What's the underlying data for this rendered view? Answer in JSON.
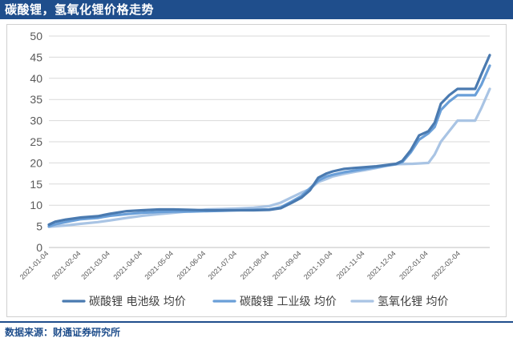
{
  "header": {
    "title": "碳酸锂，氢氧化锂价格走势"
  },
  "footer": {
    "source": "数据来源：财通证券研究所"
  },
  "colors": {
    "title_bar": "#1f4e8c",
    "grid": "#d9d9d9",
    "axis_text": "#595959"
  },
  "chart_data": {
    "type": "line",
    "title": "",
    "xlabel": "",
    "ylabel": "",
    "ylim": [
      0,
      50
    ],
    "yticks": [
      0,
      5,
      10,
      15,
      20,
      25,
      30,
      35,
      40,
      45,
      50
    ],
    "xlim": [
      "2021-01-04",
      "2022-03-04"
    ],
    "xtick_labels": [
      "2021-01-04",
      "2021-02-04",
      "2021-03-04",
      "2021-04-04",
      "2021-05-04",
      "2021-06-04",
      "2021-07-04",
      "2021-08-04",
      "2021-09-04",
      "2021-10-04",
      "2021-11-04",
      "2021-12-04",
      "2022-01-04",
      "2022-02-04"
    ],
    "grid": "horizontal",
    "legend_position": "bottom",
    "series": [
      {
        "name": "碳酸锂 电池级 均价",
        "color": "#4a7ab0",
        "points": [
          [
            "2021-01-04",
            5.4
          ],
          [
            "2021-01-10",
            6.1
          ],
          [
            "2021-01-20",
            6.6
          ],
          [
            "2021-02-04",
            7.1
          ],
          [
            "2021-02-20",
            7.4
          ],
          [
            "2021-03-04",
            8.0
          ],
          [
            "2021-03-20",
            8.6
          ],
          [
            "2021-04-04",
            8.8
          ],
          [
            "2021-04-20",
            9.0
          ],
          [
            "2021-05-04",
            9.0
          ],
          [
            "2021-05-20",
            8.9
          ],
          [
            "2021-06-04",
            8.8
          ],
          [
            "2021-06-20",
            8.8
          ],
          [
            "2021-07-04",
            8.8
          ],
          [
            "2021-07-20",
            8.8
          ],
          [
            "2021-08-04",
            8.9
          ],
          [
            "2021-08-15",
            9.3
          ],
          [
            "2021-08-25",
            10.5
          ],
          [
            "2021-09-04",
            11.8
          ],
          [
            "2021-09-12",
            13.5
          ],
          [
            "2021-09-20",
            16.5
          ],
          [
            "2021-09-28",
            17.5
          ],
          [
            "2021-10-04",
            18.0
          ],
          [
            "2021-10-15",
            18.6
          ],
          [
            "2021-10-25",
            18.8
          ],
          [
            "2021-11-04",
            19.0
          ],
          [
            "2021-11-15",
            19.2
          ],
          [
            "2021-11-25",
            19.5
          ],
          [
            "2021-12-04",
            19.8
          ],
          [
            "2021-12-10",
            20.5
          ],
          [
            "2021-12-18",
            23.0
          ],
          [
            "2021-12-26",
            26.5
          ],
          [
            "2022-01-04",
            27.5
          ],
          [
            "2022-01-10",
            29.5
          ],
          [
            "2022-01-16",
            34.0
          ],
          [
            "2022-01-24",
            36.0
          ],
          [
            "2022-02-01",
            37.5
          ],
          [
            "2022-02-18",
            37.5
          ],
          [
            "2022-02-24",
            41.0
          ],
          [
            "2022-03-04",
            45.5
          ]
        ]
      },
      {
        "name": "碳酸锂 工业级 均价",
        "color": "#6a9fd8",
        "points": [
          [
            "2021-01-04",
            5.0
          ],
          [
            "2021-01-12",
            5.6
          ],
          [
            "2021-01-24",
            6.2
          ],
          [
            "2021-02-04",
            6.7
          ],
          [
            "2021-02-20",
            7.0
          ],
          [
            "2021-03-04",
            7.5
          ],
          [
            "2021-03-20",
            7.9
          ],
          [
            "2021-04-04",
            8.2
          ],
          [
            "2021-04-20",
            8.4
          ],
          [
            "2021-05-04",
            8.5
          ],
          [
            "2021-05-20",
            8.5
          ],
          [
            "2021-06-04",
            8.6
          ],
          [
            "2021-06-20",
            8.7
          ],
          [
            "2021-07-04",
            8.8
          ],
          [
            "2021-07-20",
            8.9
          ],
          [
            "2021-08-04",
            9.0
          ],
          [
            "2021-08-15",
            9.5
          ],
          [
            "2021-08-25",
            10.8
          ],
          [
            "2021-09-04",
            12.2
          ],
          [
            "2021-09-12",
            14.0
          ],
          [
            "2021-09-20",
            15.8
          ],
          [
            "2021-09-28",
            16.8
          ],
          [
            "2021-10-04",
            17.2
          ],
          [
            "2021-10-15",
            17.8
          ],
          [
            "2021-10-25",
            18.2
          ],
          [
            "2021-11-04",
            18.6
          ],
          [
            "2021-11-15",
            19.0
          ],
          [
            "2021-11-25",
            19.4
          ],
          [
            "2021-12-04",
            19.7
          ],
          [
            "2021-12-10",
            20.2
          ],
          [
            "2021-12-18",
            22.5
          ],
          [
            "2021-12-26",
            25.5
          ],
          [
            "2022-01-04",
            27.0
          ],
          [
            "2022-01-10",
            28.5
          ],
          [
            "2022-01-16",
            32.5
          ],
          [
            "2022-01-24",
            34.5
          ],
          [
            "2022-02-01",
            36.0
          ],
          [
            "2022-02-18",
            36.0
          ],
          [
            "2022-02-24",
            38.5
          ],
          [
            "2022-03-04",
            43.0
          ]
        ]
      },
      {
        "name": "氢氧化锂 均价",
        "color": "#a9c4e4",
        "points": [
          [
            "2021-01-04",
            4.9
          ],
          [
            "2021-01-20",
            5.2
          ],
          [
            "2021-02-04",
            5.6
          ],
          [
            "2021-02-20",
            6.0
          ],
          [
            "2021-03-04",
            6.4
          ],
          [
            "2021-03-20",
            7.0
          ],
          [
            "2021-04-04",
            7.5
          ],
          [
            "2021-04-20",
            7.9
          ],
          [
            "2021-05-04",
            8.2
          ],
          [
            "2021-05-20",
            8.6
          ],
          [
            "2021-06-04",
            9.0
          ],
          [
            "2021-06-20",
            9.1
          ],
          [
            "2021-07-04",
            9.2
          ],
          [
            "2021-07-20",
            9.4
          ],
          [
            "2021-08-04",
            9.8
          ],
          [
            "2021-08-15",
            10.6
          ],
          [
            "2021-08-25",
            11.8
          ],
          [
            "2021-09-04",
            13.0
          ],
          [
            "2021-09-12",
            13.8
          ],
          [
            "2021-09-20",
            15.5
          ],
          [
            "2021-09-28",
            16.2
          ],
          [
            "2021-10-04",
            16.8
          ],
          [
            "2021-10-15",
            17.4
          ],
          [
            "2021-10-25",
            17.9
          ],
          [
            "2021-11-04",
            18.3
          ],
          [
            "2021-11-15",
            18.8
          ],
          [
            "2021-11-25",
            19.3
          ],
          [
            "2021-12-04",
            19.7
          ],
          [
            "2021-12-20",
            19.8
          ],
          [
            "2022-01-04",
            20.0
          ],
          [
            "2022-01-10",
            22.0
          ],
          [
            "2022-01-16",
            25.0
          ],
          [
            "2022-01-24",
            27.5
          ],
          [
            "2022-02-01",
            30.0
          ],
          [
            "2022-02-18",
            30.0
          ],
          [
            "2022-02-24",
            33.0
          ],
          [
            "2022-03-04",
            37.5
          ]
        ]
      }
    ]
  }
}
